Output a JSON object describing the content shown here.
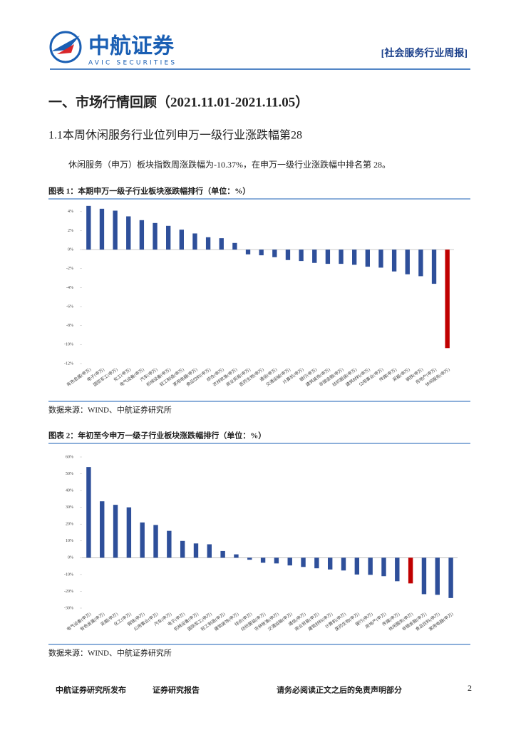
{
  "header": {
    "company": "中航证券",
    "company_en": "AVIC SECURITIES",
    "report_tag": "[社会服务行业周报]"
  },
  "section": {
    "title": "一、市场行情回顾（2021.11.01-2021.11.05）",
    "subtitle": "1.1本周休闲服务行业位列申万一级行业涨跌幅第28",
    "paragraph": "休闲服务（申万）板块指数周涨跌幅为-10.37%，在申万一级行业涨跌幅中排名第 28。"
  },
  "chart_data": [
    {
      "type": "bar",
      "title": "图表 1：本期申万一级子行业板块涨跌幅排行（单位：%）",
      "source": "数据来源：WIND、中航证券研究所",
      "categories": [
        "有色金属(申万)",
        "电子(申万)",
        "国防军工(申万)",
        "化工(申万)",
        "电气设备(申万)",
        "汽车(申万)",
        "机械设备(申万)",
        "轻工制造(申万)",
        "家用电器(申万)",
        "食品饮料(申万)",
        "综合(申万)",
        "农林牧渔(申万)",
        "商业贸易(申万)",
        "医药生物(申万)",
        "通信(申万)",
        "交通运输(申万)",
        "计算机(申万)",
        "银行(申万)",
        "建筑装饰(申万)",
        "非银金融(申万)",
        "纺织服装(申万)",
        "建筑材料(申万)",
        "公用事业(申万)",
        "传媒(申万)",
        "采掘(申万)",
        "钢铁(申万)",
        "房地产(申万)",
        "休闲服务(申万)"
      ],
      "values": [
        4.6,
        4.3,
        4.1,
        3.5,
        3.1,
        2.8,
        2.5,
        2.1,
        1.7,
        1.3,
        1.2,
        0.7,
        -0.5,
        -0.6,
        -0.8,
        -1.1,
        -1.2,
        -1.4,
        -1.5,
        -1.5,
        -1.6,
        -1.8,
        -1.9,
        -2.3,
        -2.6,
        -2.8,
        -3.6,
        -10.37
      ],
      "colors": [
        "#2e4f9a",
        "#2e4f9a",
        "#2e4f9a",
        "#2e4f9a",
        "#2e4f9a",
        "#2e4f9a",
        "#2e4f9a",
        "#2e4f9a",
        "#2e4f9a",
        "#2e4f9a",
        "#2e4f9a",
        "#2e4f9a",
        "#2e4f9a",
        "#2e4f9a",
        "#2e4f9a",
        "#2e4f9a",
        "#2e4f9a",
        "#2e4f9a",
        "#2e4f9a",
        "#2e4f9a",
        "#2e4f9a",
        "#2e4f9a",
        "#2e4f9a",
        "#2e4f9a",
        "#2e4f9a",
        "#2e4f9a",
        "#2e4f9a",
        "#c00000"
      ],
      "ylim": [
        -12,
        5
      ],
      "yticks": [
        {
          "value": 4,
          "label": "4%"
        },
        {
          "value": 2,
          "label": "2%"
        },
        {
          "value": 0,
          "label": "0%"
        },
        {
          "value": -2,
          "label": "-2%"
        },
        {
          "value": -4,
          "label": "-4%"
        },
        {
          "value": -6,
          "label": "-6%"
        },
        {
          "value": -8,
          "label": "-8%"
        },
        {
          "value": -10,
          "label": "-10%"
        },
        {
          "value": -12,
          "label": "-12%"
        }
      ]
    },
    {
      "type": "bar",
      "title": "图表 2：年初至今申万一级子行业板块涨跌幅排行（单位：%）",
      "source": "数据来源：WIND、中航证券研究所",
      "categories": [
        "电气设备(申万)",
        "有色金属(申万)",
        "采掘(申万)",
        "化工(申万)",
        "钢铁(申万)",
        "公用事业(申万)",
        "汽车(申万)",
        "电子(申万)",
        "机械设备(申万)",
        "国防军工(申万)",
        "轻工制造(申万)",
        "建筑装饰(申万)",
        "综合(申万)",
        "纺织服装(申万)",
        "农林牧渔(申万)",
        "交通运输(申万)",
        "通信(申万)",
        "商业贸易(申万)",
        "建筑材料(申万)",
        "计算机(申万)",
        "医药生物(申万)",
        "银行(申万)",
        "房地产(申万)",
        "传媒(申万)",
        "休闲服务(申万)",
        "非银金融(申万)",
        "食品饮料(申万)",
        "家用电器(申万)"
      ],
      "values": [
        54,
        33.6,
        31.5,
        30,
        21,
        19.5,
        16,
        10,
        8.5,
        8,
        4,
        2,
        -1.2,
        -3,
        -3.4,
        -4.6,
        -5.5,
        -6.3,
        -7,
        -7.6,
        -10,
        -10.2,
        -11,
        -14,
        -15.3,
        -21.7,
        -22.1,
        -24
      ],
      "colors": [
        "#2e4f9a",
        "#2e4f9a",
        "#2e4f9a",
        "#2e4f9a",
        "#2e4f9a",
        "#2e4f9a",
        "#2e4f9a",
        "#2e4f9a",
        "#2e4f9a",
        "#2e4f9a",
        "#2e4f9a",
        "#2e4f9a",
        "#2e4f9a",
        "#2e4f9a",
        "#2e4f9a",
        "#2e4f9a",
        "#2e4f9a",
        "#2e4f9a",
        "#2e4f9a",
        "#2e4f9a",
        "#2e4f9a",
        "#2e4f9a",
        "#2e4f9a",
        "#2e4f9a",
        "#c00000",
        "#2e4f9a",
        "#2e4f9a",
        "#2e4f9a"
      ],
      "ylim": [
        -30,
        60
      ],
      "yticks": [
        {
          "value": 60,
          "label": "60%"
        },
        {
          "value": 50,
          "label": "50%"
        },
        {
          "value": 40,
          "label": "40%"
        },
        {
          "value": 30,
          "label": "30%"
        },
        {
          "value": 20,
          "label": "20%"
        },
        {
          "value": 10,
          "label": "10%"
        },
        {
          "value": 0,
          "label": "0%"
        },
        {
          "value": -10,
          "label": "-10%"
        },
        {
          "value": -20,
          "label": "-20%"
        },
        {
          "value": -30,
          "label": "-30%"
        }
      ]
    }
  ],
  "footer": {
    "left": "中航证券研究所发布",
    "middle": "证券研究报告",
    "right": "请务必阅读正文之后的免责声明部分",
    "page": "2"
  }
}
